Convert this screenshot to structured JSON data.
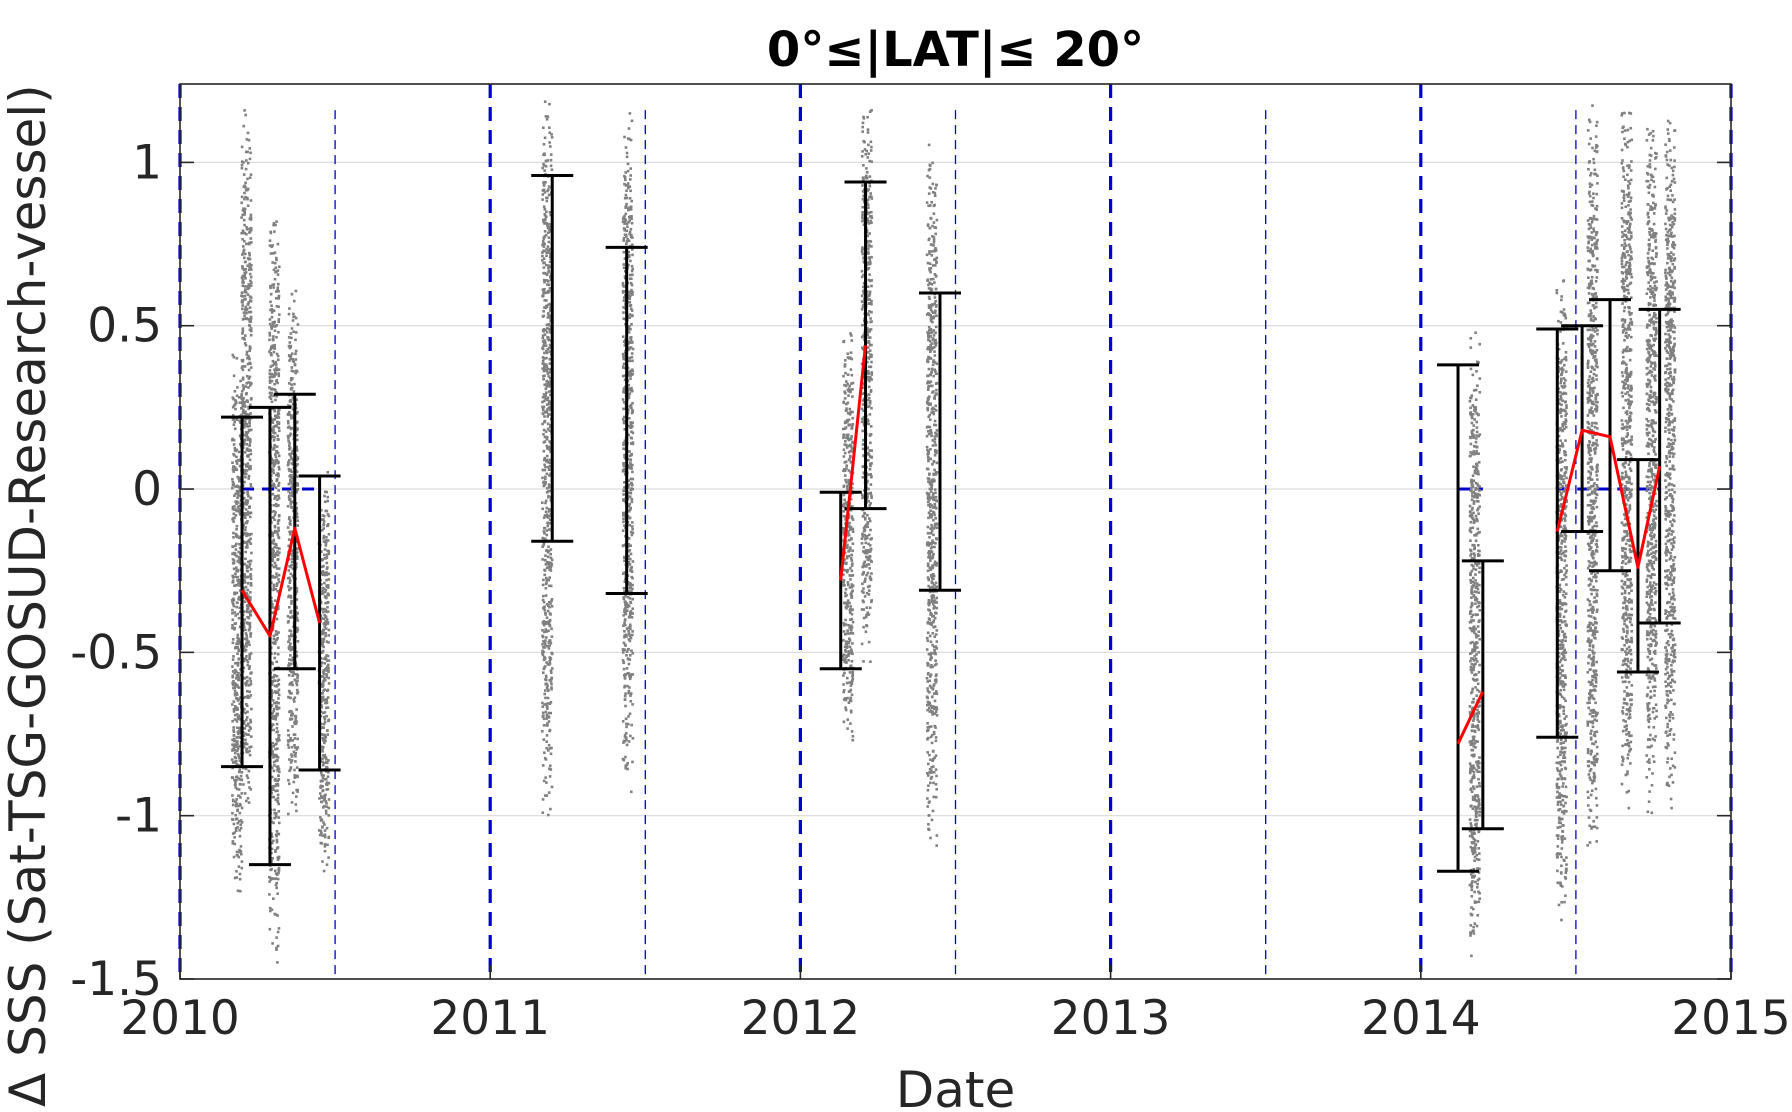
{
  "chart_data": {
    "type": "scatter",
    "title": "0°≤|LAT|≤ 20°",
    "xlabel": "Date",
    "ylabel": "Δ SSS (Sat-TSG-GOSUD-Research-vessel)",
    "xlim": [
      2010,
      2015
    ],
    "ylim": [
      -1.5,
      1.24
    ],
    "x_ticks": [
      "2010",
      "2011",
      "2012",
      "2013",
      "2014",
      "2015"
    ],
    "y_ticks": [
      "1",
      "0.5",
      "0",
      "-0.5",
      "-1",
      "-1.5"
    ],
    "y_tick_values": [
      1,
      0.5,
      0,
      -0.5,
      -1,
      -1.5
    ],
    "grid": true,
    "colors": {
      "samples": "#808080",
      "mean_line": "#ff0000",
      "error_bars": "#000000",
      "year_lines": "#0000cc",
      "zero_reference": "#0000cc",
      "grid": "#dcdcdc"
    },
    "sample_clusters": [
      {
        "x": 2010.18,
        "low": -1.28,
        "high": 0.42
      },
      {
        "x": 2010.21,
        "low": -1.05,
        "high": 1.22
      },
      {
        "x": 2010.3,
        "low": -1.48,
        "high": 0.88
      },
      {
        "x": 2010.36,
        "low": -1.05,
        "high": 0.64
      },
      {
        "x": 2010.46,
        "low": -1.2,
        "high": 0.1
      },
      {
        "x": 2011.18,
        "low": -1.05,
        "high": 1.22
      },
      {
        "x": 2011.44,
        "low": -0.93,
        "high": 1.2
      },
      {
        "x": 2012.15,
        "low": -0.8,
        "high": 0.5
      },
      {
        "x": 2012.21,
        "low": -0.55,
        "high": 1.22
      },
      {
        "x": 2012.42,
        "low": -1.13,
        "high": 1.08
      },
      {
        "x": 2014.17,
        "low": -1.48,
        "high": 0.5
      },
      {
        "x": 2014.45,
        "low": -1.35,
        "high": 0.7
      },
      {
        "x": 2014.55,
        "low": -1.2,
        "high": 1.22
      },
      {
        "x": 2014.66,
        "low": -1.0,
        "high": 1.22
      },
      {
        "x": 2014.74,
        "low": -1.0,
        "high": 1.22
      },
      {
        "x": 2014.8,
        "low": -1.0,
        "high": 1.2
      }
    ],
    "error_bars": [
      {
        "x": 2010.2,
        "low": -0.85,
        "high": 0.22
      },
      {
        "x": 2010.29,
        "low": -1.15,
        "high": 0.25
      },
      {
        "x": 2010.37,
        "low": -0.55,
        "high": 0.29
      },
      {
        "x": 2010.45,
        "low": -0.86,
        "high": 0.04
      },
      {
        "x": 2011.2,
        "low": -0.16,
        "high": 0.96
      },
      {
        "x": 2011.44,
        "low": -0.32,
        "high": 0.74
      },
      {
        "x": 2012.13,
        "low": -0.55,
        "high": -0.01
      },
      {
        "x": 2012.21,
        "low": -0.06,
        "high": 0.94
      },
      {
        "x": 2012.45,
        "low": -0.31,
        "high": 0.6
      },
      {
        "x": 2014.12,
        "low": -1.17,
        "high": 0.38
      },
      {
        "x": 2014.2,
        "low": -1.04,
        "high": -0.22
      },
      {
        "x": 2014.44,
        "low": -0.76,
        "high": 0.49
      },
      {
        "x": 2014.52,
        "low": -0.13,
        "high": 0.5
      },
      {
        "x": 2014.61,
        "low": -0.25,
        "high": 0.58
      },
      {
        "x": 2014.7,
        "low": -0.56,
        "high": 0.09
      },
      {
        "x": 2014.77,
        "low": -0.41,
        "high": 0.55
      }
    ],
    "mean_series": [
      {
        "x": [
          2010.2,
          2010.29,
          2010.37,
          2010.45
        ],
        "y": [
          -0.31,
          -0.45,
          -0.12,
          -0.41
        ]
      },
      {
        "x": [
          2012.13,
          2012.21
        ],
        "y": [
          -0.28,
          0.44
        ]
      },
      {
        "x": [
          2014.12,
          2014.2
        ],
        "y": [
          -0.78,
          -0.62
        ]
      },
      {
        "x": [
          2014.44,
          2014.52,
          2014.61,
          2014.7,
          2014.77
        ],
        "y": [
          -0.13,
          0.18,
          0.16,
          -0.24,
          0.07
        ]
      }
    ],
    "year_lines": [
      2010,
      2011,
      2012,
      2013,
      2014,
      2015
    ],
    "half_year_lines": [
      2010.5,
      2011.5,
      2012.5,
      2013.5,
      2014.5
    ],
    "zero_reference_segments": [
      {
        "x0": 2010.2,
        "x1": 2010.45
      },
      {
        "x0": 2014.12,
        "x1": 2014.2
      },
      {
        "x0": 2014.44,
        "x1": 2014.77
      }
    ]
  }
}
